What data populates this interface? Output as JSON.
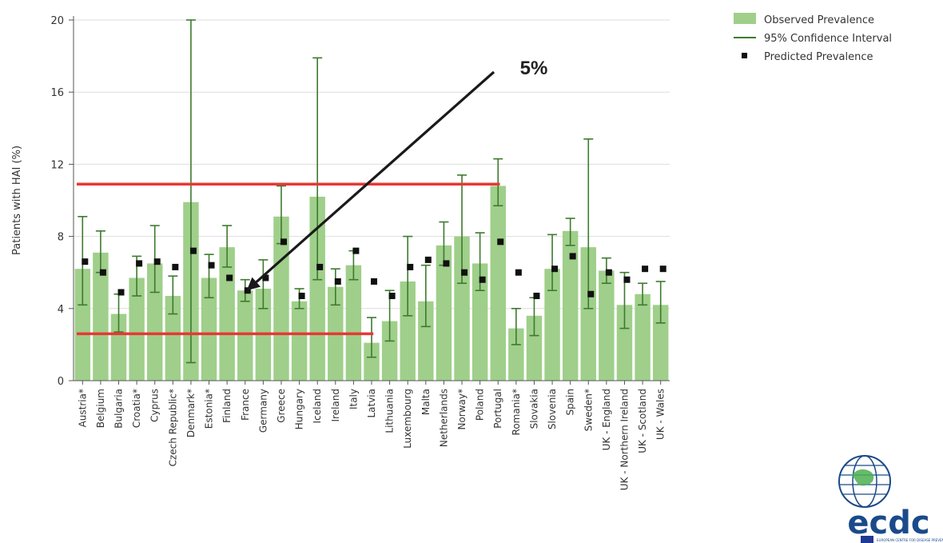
{
  "chart_data": {
    "type": "bar",
    "ylabel": "Patients with HAI (%)",
    "xlabel": "",
    "ylim": [
      0,
      20
    ],
    "yticks": [
      0,
      4,
      8,
      12,
      16,
      20
    ],
    "grid": true,
    "legend_position": "top-right",
    "categories": [
      "Austria*",
      "Belgium",
      "Bulgaria",
      "Croatia*",
      "Cyprus",
      "Czech Republic*",
      "Denmark*",
      "Estonia*",
      "Finland",
      "France",
      "Germany",
      "Greece",
      "Hungary",
      "Iceland",
      "Ireland",
      "Italy",
      "Latvia",
      "Lithuania",
      "Luxembourg",
      "Malta",
      "Netherlands",
      "Norway*",
      "Poland",
      "Portugal",
      "Romania*",
      "Slovakia",
      "Slovenia",
      "Spain",
      "Sweden*",
      "UK - England",
      "UK - Northern Ireland",
      "UK - Scotland",
      "UK - Wales"
    ],
    "series": [
      {
        "name": "Observed Prevalence",
        "kind": "bar",
        "values": [
          6.2,
          7.1,
          3.7,
          5.7,
          6.5,
          4.7,
          9.9,
          5.7,
          7.4,
          5.0,
          5.1,
          9.1,
          4.4,
          10.2,
          5.2,
          6.4,
          2.1,
          3.3,
          5.5,
          4.4,
          7.5,
          8.0,
          6.5,
          10.8,
          2.9,
          3.6,
          6.2,
          8.3,
          7.4,
          6.1,
          4.2,
          4.8,
          4.2
        ]
      },
      {
        "name": "95% Confidence Interval",
        "kind": "errorbar",
        "lower": [
          4.2,
          6.0,
          2.7,
          4.7,
          4.9,
          3.7,
          1.0,
          4.6,
          6.3,
          4.4,
          4.0,
          7.6,
          4.0,
          5.6,
          4.2,
          5.6,
          1.3,
          2.2,
          3.6,
          3.0,
          6.4,
          5.4,
          5.0,
          9.7,
          2.0,
          2.5,
          5.0,
          7.5,
          4.0,
          5.4,
          2.9,
          4.2,
          3.2
        ],
        "upper": [
          9.1,
          8.3,
          4.8,
          6.9,
          8.6,
          5.8,
          20.0,
          7.0,
          8.6,
          5.6,
          6.7,
          10.8,
          5.1,
          17.9,
          6.2,
          7.2,
          3.5,
          5.0,
          8.0,
          6.4,
          8.8,
          11.4,
          8.2,
          12.3,
          4.0,
          4.6,
          8.1,
          9.0,
          13.4,
          6.8,
          6.0,
          5.4,
          5.5
        ]
      },
      {
        "name": "Predicted Prevalence",
        "kind": "point",
        "values": [
          6.6,
          6.0,
          4.9,
          6.5,
          6.6,
          6.3,
          7.2,
          6.4,
          5.7,
          5.0,
          5.7,
          7.7,
          4.7,
          6.3,
          5.5,
          7.2,
          5.5,
          4.7,
          6.3,
          6.7,
          6.5,
          6.0,
          5.6,
          7.7,
          6.0,
          4.7,
          6.2,
          6.9,
          4.8,
          6.0,
          5.6,
          6.2,
          6.2
        ]
      }
    ],
    "reference_lines": [
      {
        "y": 10.9,
        "from": "Austria*",
        "to": "Portugal",
        "color": "#e53935"
      },
      {
        "y": 2.6,
        "from": "Austria*",
        "to": "Latvia",
        "color": "#e53935"
      }
    ],
    "annotation": {
      "text": "5%",
      "points_to": "France",
      "value": 5.0
    }
  },
  "legend": {
    "items": [
      {
        "label": "Observed Prevalence",
        "symbol": "bar"
      },
      {
        "label": "95% Confidence Interval",
        "symbol": "line"
      },
      {
        "label": "Predicted Prevalence",
        "symbol": "point"
      }
    ]
  },
  "colors": {
    "bar": "#9fcf8a",
    "errorbar": "#3d7a2e",
    "point": "#111111",
    "reference_line": "#e53935",
    "grid": "#dddddd",
    "logo_blue": "#1a4a8a",
    "logo_green": "#4caf50"
  },
  "logo": {
    "name": "ecdc",
    "text": "ecdc",
    "tagline": "EUROPEAN CENTRE FOR DISEASE PREVENTION AND CONTROL"
  }
}
